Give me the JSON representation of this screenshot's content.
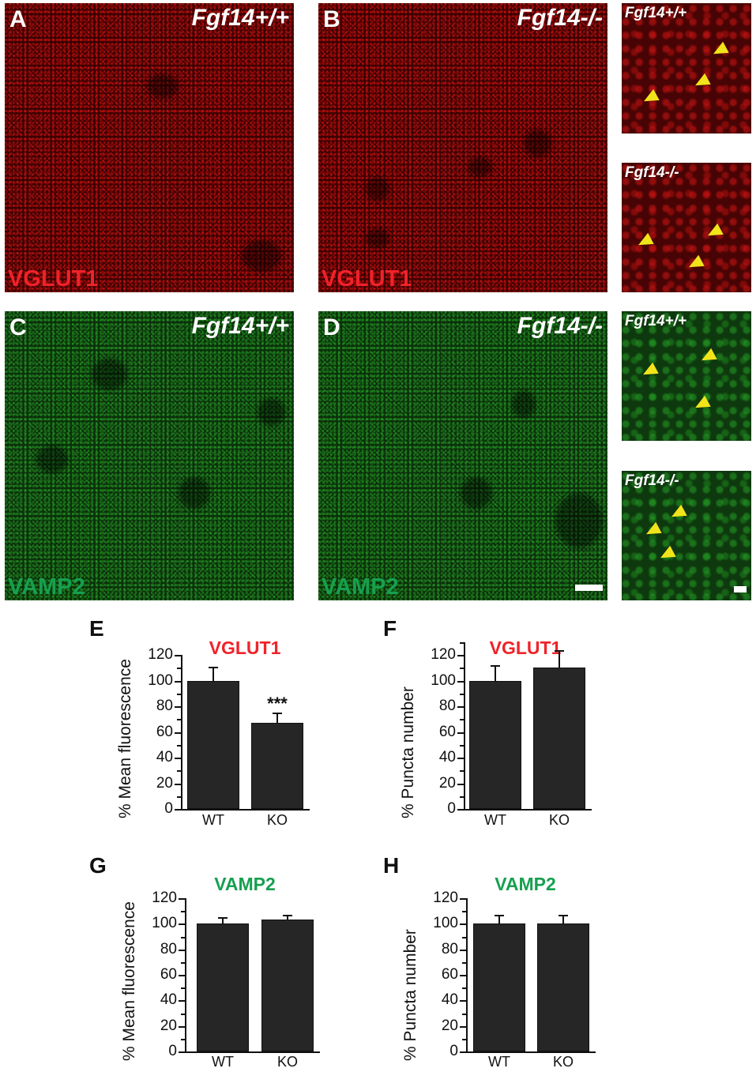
{
  "image_panels": {
    "A": {
      "letter": "A",
      "genotype": "Fgf14+/+",
      "marker": "VGLUT1"
    },
    "B": {
      "letter": "B",
      "genotype": "Fgf14-/-",
      "marker": "VGLUT1"
    },
    "C": {
      "letter": "C",
      "genotype": "Fgf14+/+",
      "marker": "VAMP2"
    },
    "D": {
      "letter": "D",
      "genotype": "Fgf14-/-",
      "marker": "VAMP2"
    },
    "insets": [
      {
        "genotype": "Fgf14+/+",
        "channel": "red"
      },
      {
        "genotype": "Fgf14-/-",
        "channel": "red"
      },
      {
        "genotype": "Fgf14+/+",
        "channel": "green"
      },
      {
        "genotype": "Fgf14-/-",
        "channel": "green"
      }
    ]
  },
  "colors": {
    "vglut1_red": "#f0222a",
    "vamp2_green": "#16a050",
    "arrowhead_yellow": "#f2e41a",
    "bar_fill": "#262626"
  },
  "chart_data": [
    {
      "panel": "E",
      "type": "bar",
      "title": "VGLUT1",
      "title_color": "#f0222a",
      "xlabel": "",
      "ylabel": "% Mean fluorescence",
      "categories": [
        "WT",
        "KO"
      ],
      "values": [
        100,
        67
      ],
      "error": [
        11,
        8
      ],
      "annotations": [
        {
          "category": "KO",
          "text": "***"
        }
      ],
      "ylim": [
        0,
        120
      ],
      "yticks": [
        0,
        20,
        40,
        60,
        80,
        100,
        120
      ],
      "grid": false
    },
    {
      "panel": "F",
      "type": "bar",
      "title": "VGLUT1",
      "title_color": "#f0222a",
      "xlabel": "",
      "ylabel": "% Puncta number",
      "categories": [
        "WT",
        "KO"
      ],
      "values": [
        100,
        110
      ],
      "error": [
        12,
        14
      ],
      "annotations": [],
      "ylim": [
        0,
        130
      ],
      "yticks": [
        0,
        20,
        40,
        60,
        80,
        100,
        120
      ],
      "grid": false
    },
    {
      "panel": "G",
      "type": "bar",
      "title": "VAMP2",
      "title_color": "#16a050",
      "xlabel": "",
      "ylabel": "% Mean fluorescence",
      "categories": [
        "WT",
        "KO"
      ],
      "values": [
        100,
        103
      ],
      "error": [
        5,
        4
      ],
      "annotations": [],
      "ylim": [
        0,
        120
      ],
      "yticks": [
        0,
        20,
        40,
        60,
        80,
        100,
        120
      ],
      "grid": false
    },
    {
      "panel": "H",
      "type": "bar",
      "title": "VAMP2",
      "title_color": "#16a050",
      "xlabel": "",
      "ylabel": "% Puncta number",
      "categories": [
        "WT",
        "KO"
      ],
      "values": [
        100,
        100
      ],
      "error": [
        7,
        7
      ],
      "annotations": [],
      "ylim": [
        0,
        120
      ],
      "yticks": [
        0,
        20,
        40,
        60,
        80,
        100,
        120
      ],
      "grid": false
    }
  ]
}
